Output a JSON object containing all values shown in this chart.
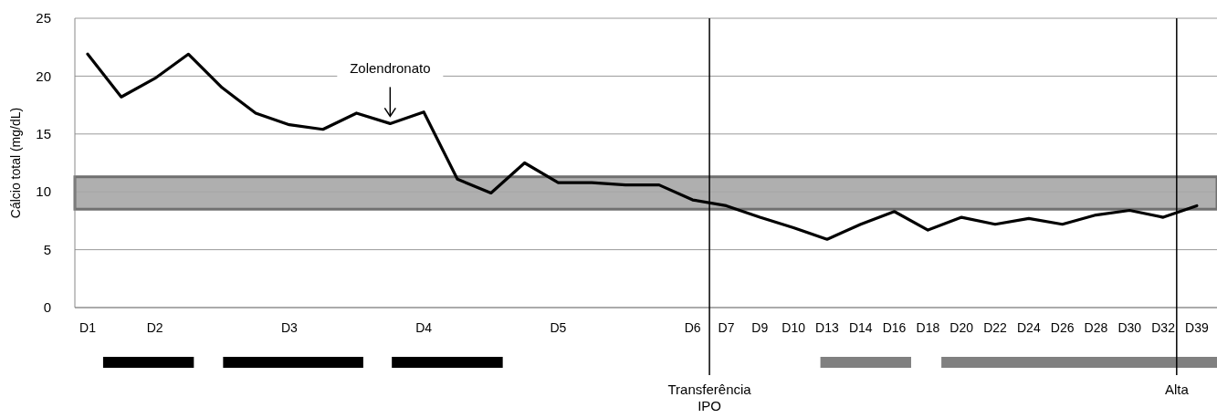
{
  "chart_data": {
    "type": "line",
    "ylabel": "Cálcio total (mg/dL)",
    "categories": [
      "D1",
      null,
      "D2",
      null,
      null,
      null,
      "D3",
      null,
      null,
      null,
      "D4",
      null,
      null,
      null,
      "D5",
      null,
      null,
      null,
      "D6",
      "D7",
      "D9",
      "D10",
      "D13",
      "D14",
      "D16",
      "D18",
      "D20",
      "D22",
      "D24",
      "D26",
      "D28",
      "D30",
      "D32",
      "D39"
    ],
    "series": [
      {
        "color": "#000000",
        "values": [
          21.9,
          18.2,
          19.8,
          21.9,
          19.0,
          16.8,
          15.8,
          15.4,
          16.8,
          15.9,
          16.9,
          11.1,
          9.9,
          12.5,
          10.8,
          10.8,
          10.6,
          10.6,
          9.3,
          8.8,
          7.8,
          6.9,
          5.9,
          7.2,
          8.3,
          6.7,
          7.8,
          7.2,
          7.7,
          7.2,
          8.0,
          8.4,
          7.8,
          8.8
        ]
      }
    ],
    "ylim": [
      0,
      25
    ],
    "yticks": [
      0,
      5,
      10,
      15,
      20,
      25
    ],
    "grid": "y",
    "marker": "none",
    "line_style": "solid",
    "bands": [
      {
        "axis": "y",
        "from": 8.5,
        "to": 11.3,
        "color": "#a6a6a6"
      }
    ],
    "annotations": [
      {
        "text": "Zolendronato",
        "y": 15.9
      },
      "Transferência\nIPO",
      "Alta"
    ]
  }
}
